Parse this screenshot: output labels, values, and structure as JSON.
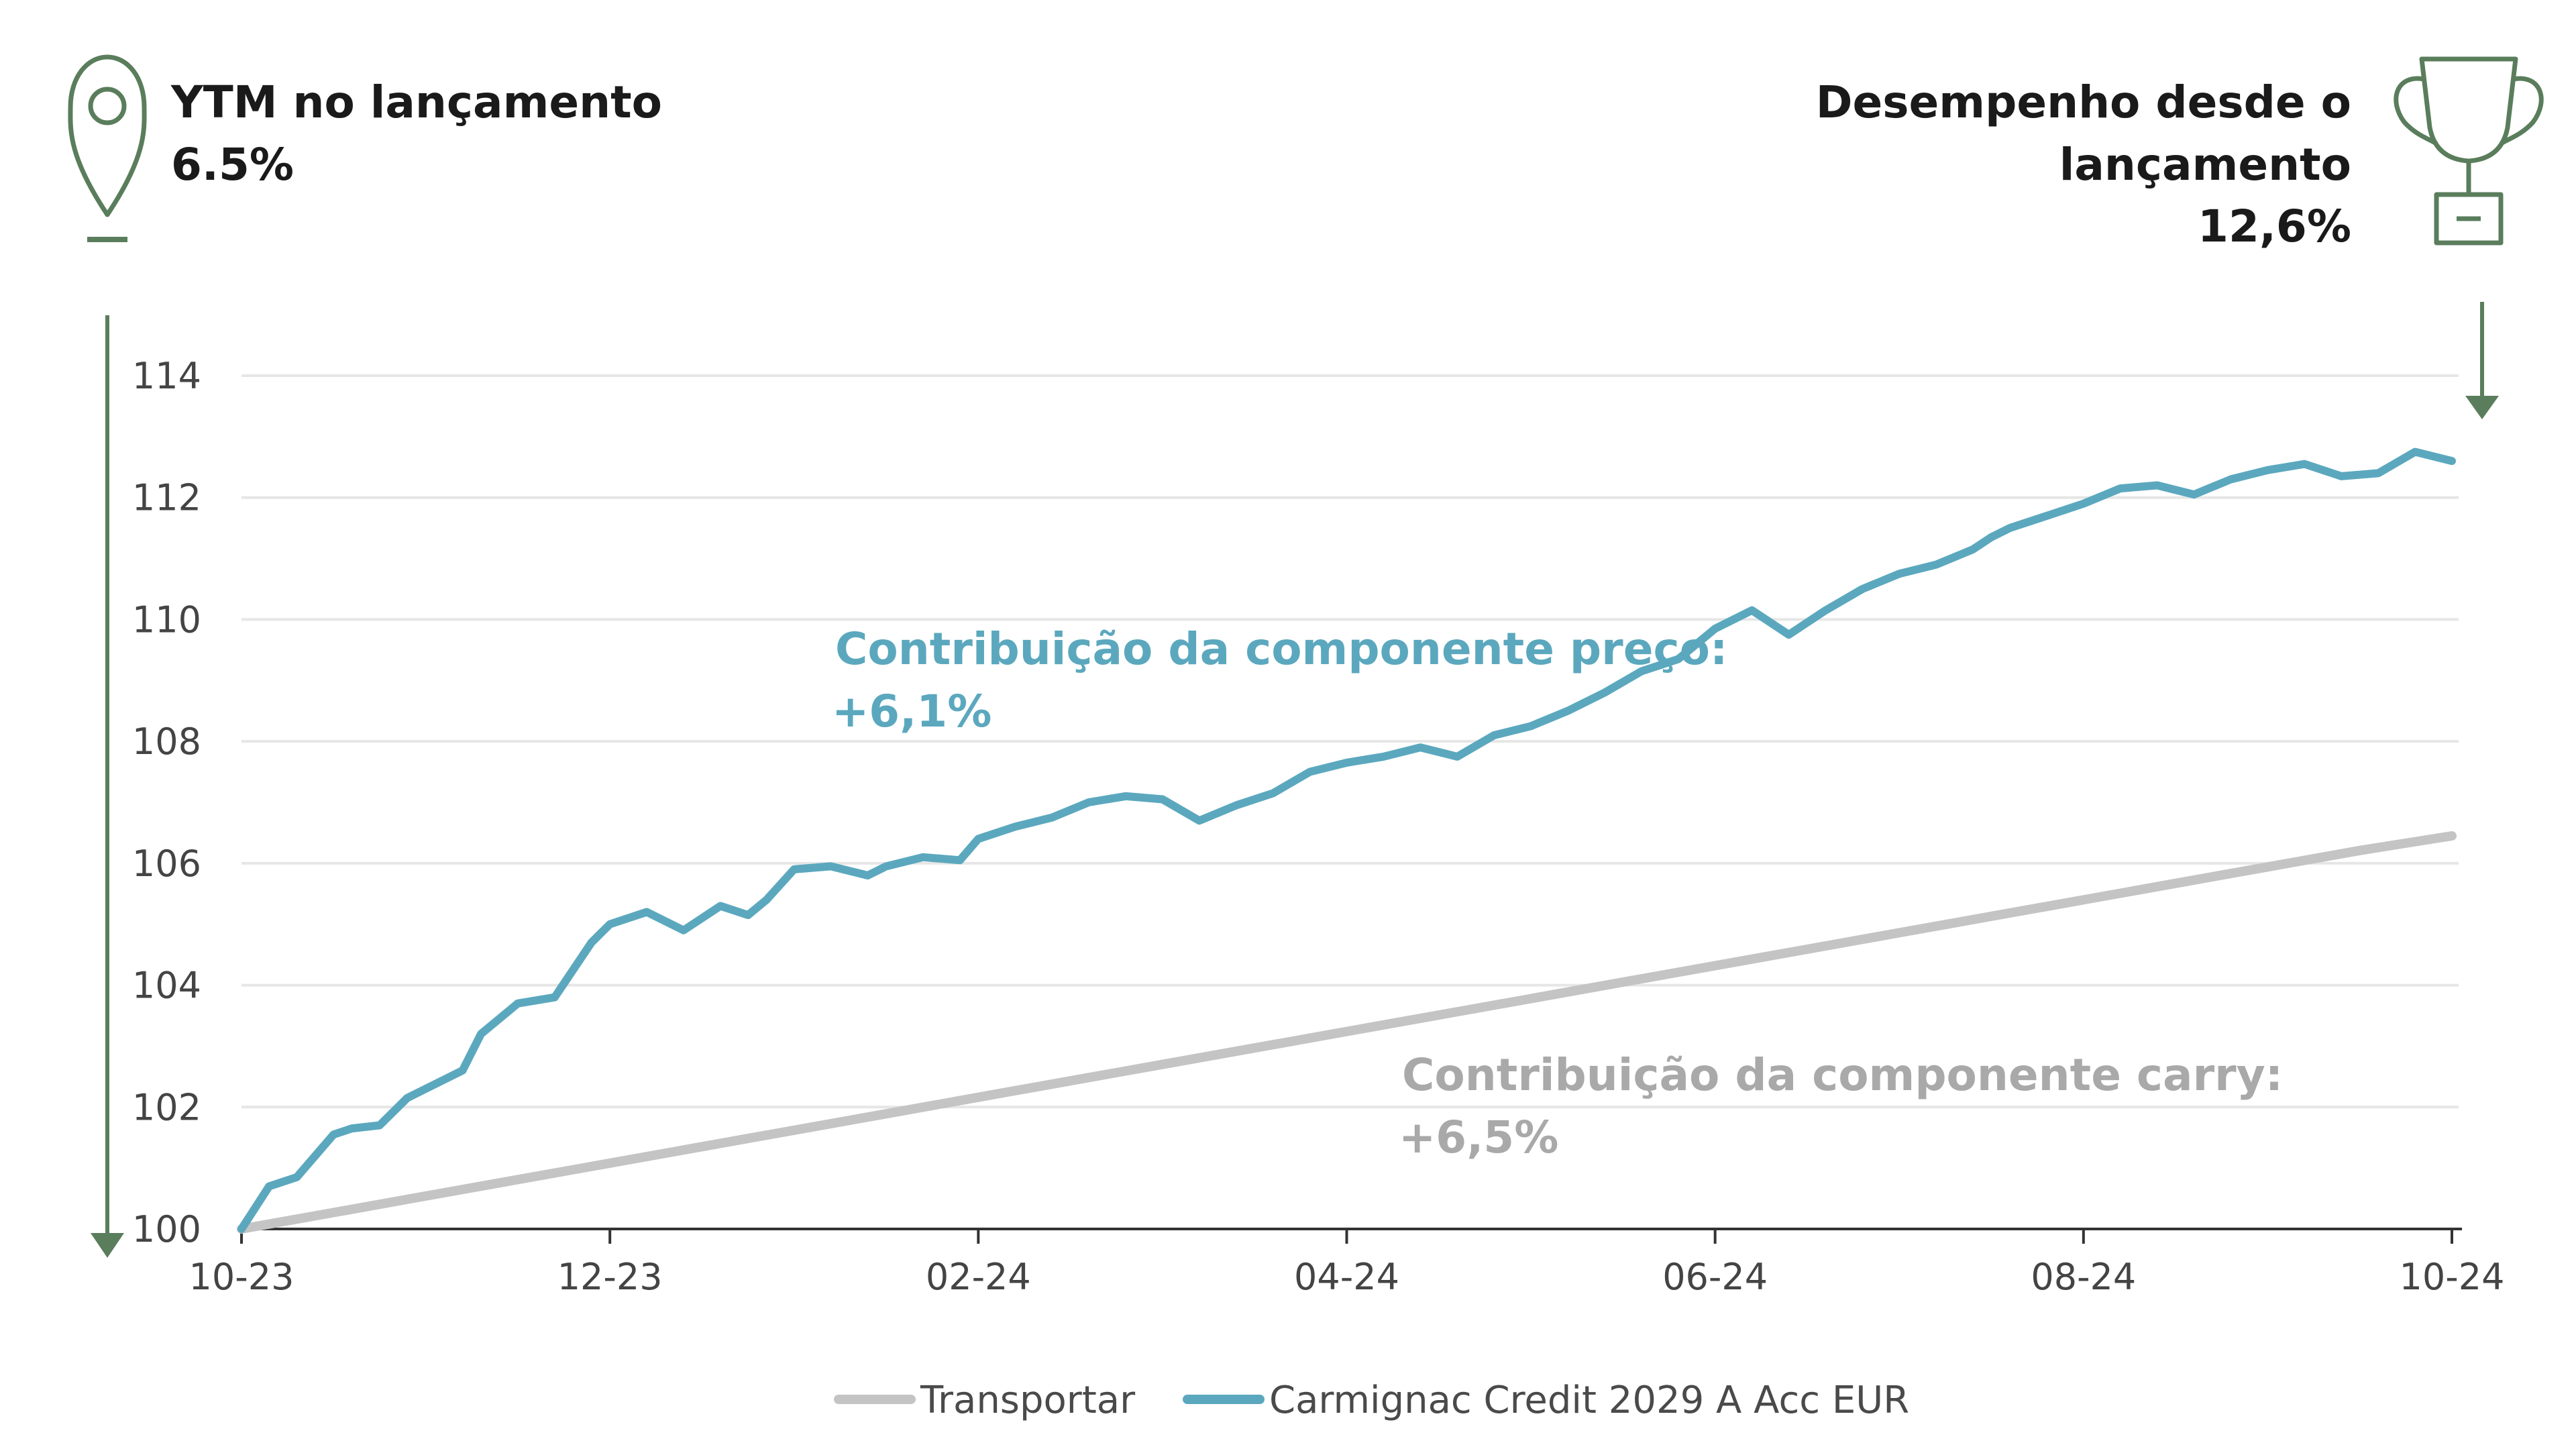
{
  "header": {
    "ytm_label": "YTM no lançamento",
    "ytm_value": "6.5%",
    "perf_label_line1": "Desempenho desde o",
    "perf_label_line2": "lançamento",
    "perf_value": "12,6%"
  },
  "icons": {
    "left": "map-pin-icon",
    "right": "trophy-icon"
  },
  "colors": {
    "fund": "#5ba8be",
    "carry": "#c4c4c4",
    "accent_green": "#5a7d5c",
    "grid": "#e6e6e6",
    "axis": "#333333"
  },
  "annotations": {
    "price_line1": "Contribuição da componente preço:",
    "price_line2": "+6,1%",
    "carry_line1": "Contribuição da componente carry:",
    "carry_line2": "+6,5%"
  },
  "chart_data": {
    "type": "line",
    "x_categories": [
      "10-23",
      "12-23",
      "02-24",
      "04-24",
      "06-24",
      "08-24",
      "10-24"
    ],
    "ylim": [
      100,
      114
    ],
    "y_ticks": [
      100,
      102,
      104,
      106,
      108,
      110,
      112,
      114
    ],
    "grid": true,
    "legend_position": "bottom",
    "series": [
      {
        "name": "Transportar",
        "color": "#c4c4c4",
        "x": [
          0,
          0.5,
          1,
          1.5,
          2,
          2.5,
          3,
          3.5,
          4,
          4.5,
          5,
          5.5,
          6,
          6.5,
          7,
          7.5,
          8,
          8.5,
          9,
          9.5,
          10,
          10.5,
          11,
          11.5,
          12
        ],
        "values": [
          100.0,
          100.27,
          100.54,
          100.81,
          101.08,
          101.35,
          101.62,
          101.89,
          102.16,
          102.43,
          102.7,
          102.97,
          103.24,
          103.51,
          103.78,
          104.05,
          104.32,
          104.59,
          104.86,
          105.13,
          105.4,
          105.67,
          105.94,
          106.21,
          106.45
        ]
      },
      {
        "name": "Carmignac Credit 2029 A Acc EUR",
        "color": "#5ba8be",
        "x": [
          0,
          0.15,
          0.3,
          0.5,
          0.6,
          0.75,
          0.9,
          1.0,
          1.2,
          1.3,
          1.5,
          1.7,
          1.9,
          2.0,
          2.2,
          2.4,
          2.6,
          2.75,
          2.85,
          3.0,
          3.2,
          3.4,
          3.5,
          3.7,
          3.9,
          4.0,
          4.2,
          4.4,
          4.6,
          4.8,
          5.0,
          5.2,
          5.4,
          5.6,
          5.8,
          6.0,
          6.2,
          6.4,
          6.6,
          6.8,
          7.0,
          7.2,
          7.4,
          7.6,
          7.8,
          8.0,
          8.2,
          8.4,
          8.6,
          8.8,
          9.0,
          9.2,
          9.4,
          9.5,
          9.6,
          9.8,
          10.0,
          10.2,
          10.4,
          10.6,
          10.8,
          11.0,
          11.2,
          11.4,
          11.6,
          11.8,
          12.0
        ],
        "values": [
          100.0,
          100.7,
          100.85,
          101.55,
          101.65,
          101.7,
          102.15,
          102.3,
          102.6,
          103.2,
          103.7,
          103.8,
          104.7,
          105.0,
          105.2,
          104.9,
          105.3,
          105.15,
          105.4,
          105.9,
          105.95,
          105.8,
          105.95,
          106.1,
          106.05,
          106.4,
          106.6,
          106.75,
          107.0,
          107.1,
          107.05,
          106.7,
          106.95,
          107.15,
          107.5,
          107.65,
          107.75,
          107.9,
          107.75,
          108.1,
          108.25,
          108.5,
          108.8,
          109.15,
          109.35,
          109.85,
          110.15,
          109.75,
          110.15,
          110.5,
          110.75,
          110.9,
          111.15,
          111.35,
          111.5,
          111.7,
          111.9,
          112.15,
          112.2,
          112.05,
          112.3,
          112.45,
          112.55,
          112.35,
          112.4,
          112.75,
          112.6
        ]
      }
    ]
  }
}
